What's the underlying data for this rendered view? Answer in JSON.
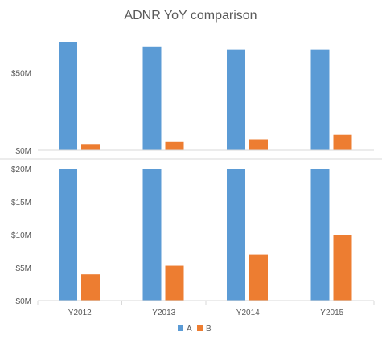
{
  "chart_data": {
    "type": "bar",
    "title": "ADNR YoY comparison",
    "categories": [
      "Y2012",
      "Y2013",
      "Y2014",
      "Y2015"
    ],
    "series": [
      {
        "name": "A",
        "color": "#5B9BD5",
        "values": [
          70,
          67,
          65,
          65
        ]
      },
      {
        "name": "B",
        "color": "#ED7D31",
        "values": [
          4,
          5.3,
          7,
          10
        ]
      }
    ],
    "panels": [
      {
        "ylim": [
          0,
          70
        ],
        "yticks": [
          0,
          50
        ],
        "tick_labels": [
          "$0M",
          "$50M"
        ]
      },
      {
        "ylim": [
          0,
          20
        ],
        "yticks": [
          0,
          5,
          10,
          15,
          20
        ],
        "tick_labels": [
          "$0M",
          "$5M",
          "$10M",
          "$15M",
          "$20M"
        ]
      }
    ],
    "xlabel": "",
    "ylabel": "",
    "legend_position": "bottom",
    "grid": false
  }
}
